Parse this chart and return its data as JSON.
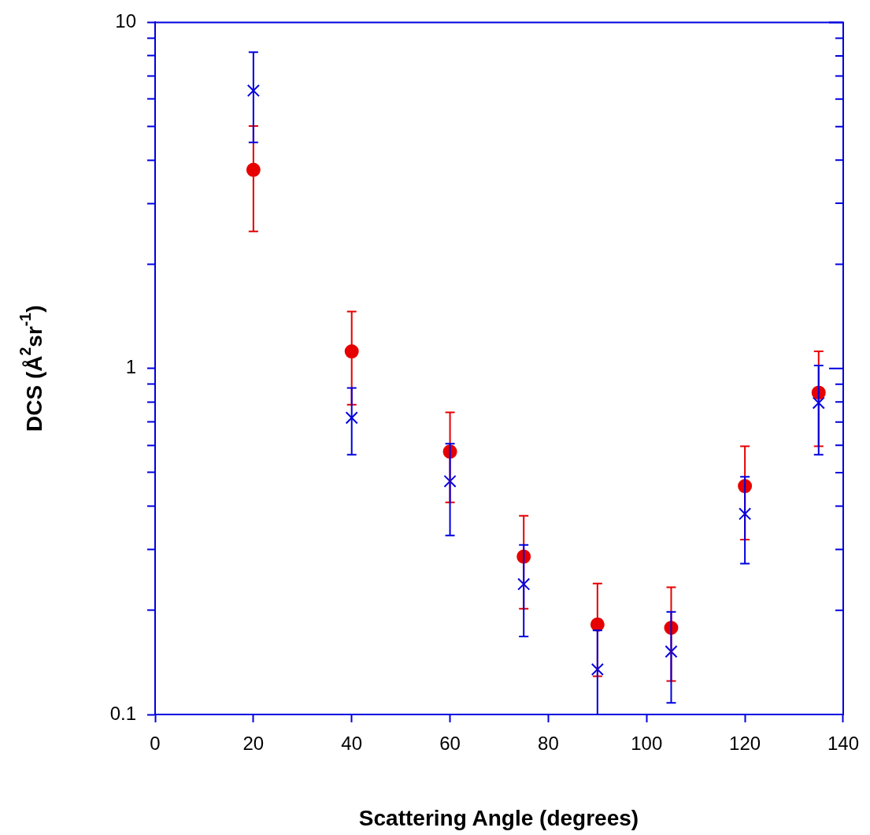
{
  "chart_data": {
    "type": "scatter",
    "xlabel": "Scattering Angle (degrees)",
    "ylabel": "DCS (Å$^{2}$sr$^{-1}$)",
    "log": "y",
    "xlim": [
      0,
      140
    ],
    "xticks": [
      0,
      20,
      40,
      60,
      80,
      100,
      120,
      140
    ],
    "ylim": [
      0.1,
      10
    ],
    "yticks": [
      0.1,
      {
        "value": 0.2,
        "label": null
      },
      {
        "value": 0.3,
        "label": null
      },
      {
        "value": 0.4,
        "label": null
      },
      {
        "value": 0.5,
        "label": null
      },
      {
        "value": 0.6,
        "label": null
      },
      {
        "value": 0.7,
        "label": null
      },
      {
        "value": 0.8,
        "label": null
      },
      {
        "value": 0.9,
        "label": null
      },
      1,
      {
        "value": 2,
        "label": null
      },
      {
        "value": 3,
        "label": null
      },
      {
        "value": 4,
        "label": null
      },
      {
        "value": 5,
        "label": null
      },
      {
        "value": 6,
        "label": null
      },
      {
        "value": 7,
        "label": null
      },
      {
        "value": 8,
        "label": null
      },
      {
        "value": 9,
        "label": null
      },
      10
    ],
    "grid": false,
    "legend": false,
    "x": [
      20,
      40,
      60,
      75,
      90,
      105,
      120,
      135
    ],
    "series": [
      {
        "color": "#e60000",
        "marker": "circle",
        "values": [
          3.75,
          1.12,
          0.575,
          0.286,
          0.182,
          0.178,
          0.457,
          0.851
        ],
        "errors": [
          [
            2.49,
            5.02
          ],
          [
            0.786,
            1.46
          ],
          [
            0.41,
            0.746
          ],
          [
            0.202,
            0.375
          ],
          [
            0.129,
            0.239
          ],
          [
            0.125,
            0.233
          ],
          [
            0.32,
            0.596
          ],
          [
            0.596,
            1.12
          ]
        ]
      },
      {
        "color": "#0000e0",
        "marker": "cross",
        "values": [
          6.35,
          0.72,
          0.472,
          0.238,
          0.135,
          0.152,
          0.38,
          0.795
        ],
        "errors": [
          [
            4.5,
            8.2
          ],
          [
            0.563,
            0.878
          ],
          [
            0.329,
            0.606
          ],
          [
            0.168,
            0.309
          ],
          [
            0.1,
            0.175
          ],
          [
            0.108,
            0.198
          ],
          [
            0.273,
            0.486
          ],
          [
            0.563,
            1.02
          ]
        ]
      }
    ]
  }
}
